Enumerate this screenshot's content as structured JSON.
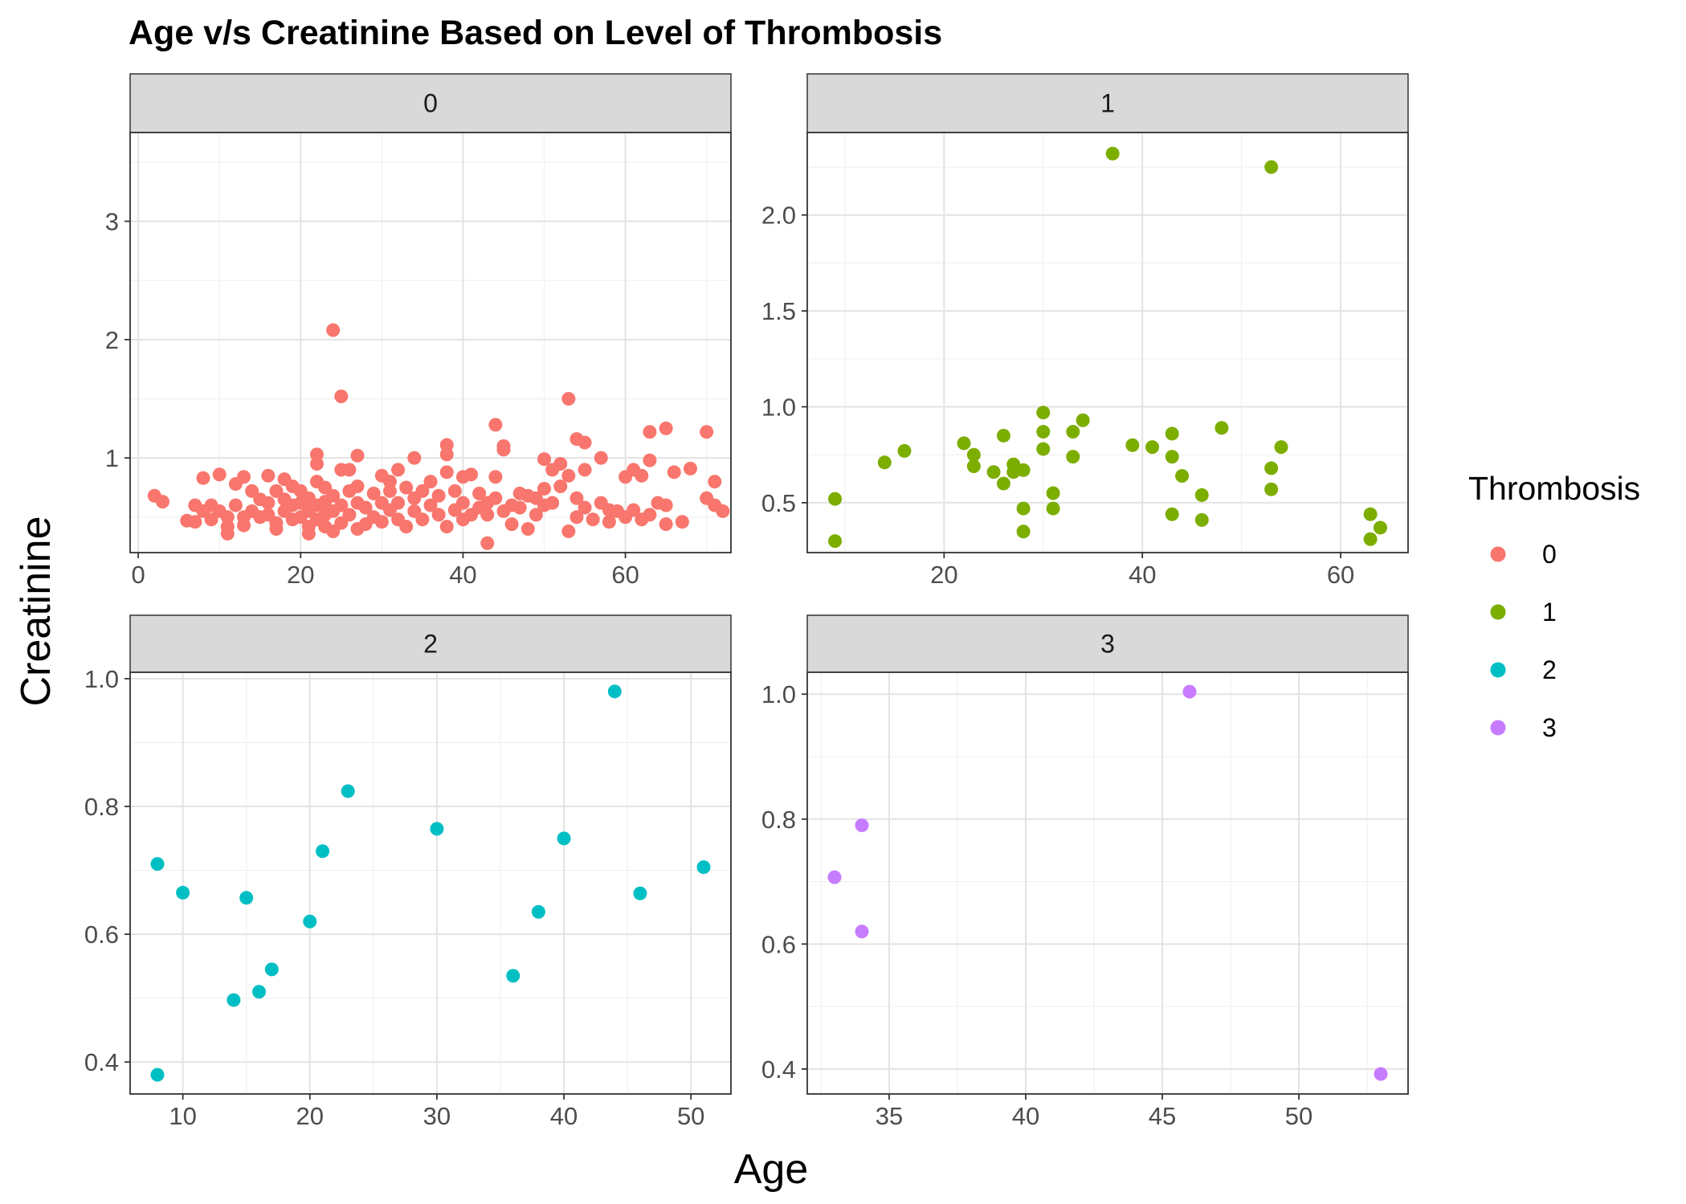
{
  "chart_data": {
    "type": "scatter",
    "title": "Age v/s Creatinine Based on Level of Thrombosis",
    "xlabel": "Age",
    "ylabel": "Creatinine",
    "legend": {
      "title": "Thrombosis",
      "placement": "right",
      "entries": [
        {
          "label": "0",
          "color": "#F8766D"
        },
        {
          "label": "1",
          "color": "#7CAE00"
        },
        {
          "label": "2",
          "color": "#00BFC4"
        },
        {
          "label": "3",
          "color": "#C77CFF"
        }
      ]
    },
    "grid": true,
    "facets": [
      {
        "label": "0",
        "color": "#F8766D",
        "xlim": [
          -1,
          73
        ],
        "ylim": [
          0.2,
          3.75
        ],
        "xticks": [
          0,
          20,
          40,
          60
        ],
        "yticks": [
          1,
          2,
          3
        ],
        "points": [
          [
            2,
            0.68
          ],
          [
            3,
            0.63
          ],
          [
            6,
            0.47
          ],
          [
            7,
            0.46
          ],
          [
            7,
            0.6
          ],
          [
            8,
            0.83
          ],
          [
            8,
            0.55
          ],
          [
            9,
            0.48
          ],
          [
            9,
            0.6
          ],
          [
            10,
            0.86
          ],
          [
            10,
            0.55
          ],
          [
            11,
            0.42
          ],
          [
            11,
            0.36
          ],
          [
            11,
            0.5
          ],
          [
            12,
            0.78
          ],
          [
            12,
            0.6
          ],
          [
            13,
            0.84
          ],
          [
            13,
            0.43
          ],
          [
            13,
            0.5
          ],
          [
            14,
            0.72
          ],
          [
            14,
            0.55
          ],
          [
            15,
            0.65
          ],
          [
            15,
            0.5
          ],
          [
            16,
            0.85
          ],
          [
            16,
            0.52
          ],
          [
            16,
            0.62
          ],
          [
            17,
            0.45
          ],
          [
            17,
            0.72
          ],
          [
            17,
            0.4
          ],
          [
            18,
            0.82
          ],
          [
            18,
            0.55
          ],
          [
            18,
            0.65
          ],
          [
            19,
            0.76
          ],
          [
            19,
            0.48
          ],
          [
            19,
            0.6
          ],
          [
            20,
            0.72
          ],
          [
            20,
            0.5
          ],
          [
            20,
            0.62
          ],
          [
            21,
            0.42
          ],
          [
            21,
            0.55
          ],
          [
            21,
            0.66
          ],
          [
            21,
            0.36
          ],
          [
            22,
            1.03
          ],
          [
            22,
            0.95
          ],
          [
            22,
            0.8
          ],
          [
            22,
            0.6
          ],
          [
            22,
            0.48
          ],
          [
            23,
            0.75
          ],
          [
            23,
            0.52
          ],
          [
            23,
            0.42
          ],
          [
            23,
            0.63
          ],
          [
            24,
            2.08
          ],
          [
            24,
            0.55
          ],
          [
            24,
            0.38
          ],
          [
            24,
            0.68
          ],
          [
            25,
            1.52
          ],
          [
            25,
            0.9
          ],
          [
            25,
            0.6
          ],
          [
            25,
            0.45
          ],
          [
            26,
            0.72
          ],
          [
            26,
            0.52
          ],
          [
            26,
            0.9
          ],
          [
            27,
            1.02
          ],
          [
            27,
            0.4
          ],
          [
            27,
            0.62
          ],
          [
            27,
            0.76
          ],
          [
            28,
            0.58
          ],
          [
            28,
            0.44
          ],
          [
            29,
            0.7
          ],
          [
            29,
            0.5
          ],
          [
            30,
            0.85
          ],
          [
            30,
            0.62
          ],
          [
            30,
            0.46
          ],
          [
            31,
            0.8
          ],
          [
            31,
            0.56
          ],
          [
            31,
            0.72
          ],
          [
            32,
            0.9
          ],
          [
            32,
            0.48
          ],
          [
            32,
            0.62
          ],
          [
            33,
            0.75
          ],
          [
            33,
            0.42
          ],
          [
            34,
            1.0
          ],
          [
            34,
            0.66
          ],
          [
            34,
            0.55
          ],
          [
            35,
            0.72
          ],
          [
            35,
            0.48
          ],
          [
            36,
            0.8
          ],
          [
            36,
            0.6
          ],
          [
            37,
            0.52
          ],
          [
            37,
            0.68
          ],
          [
            38,
            1.11
          ],
          [
            38,
            1.03
          ],
          [
            38,
            0.88
          ],
          [
            38,
            0.42
          ],
          [
            39,
            0.72
          ],
          [
            39,
            0.56
          ],
          [
            40,
            0.84
          ],
          [
            40,
            0.62
          ],
          [
            40,
            0.48
          ],
          [
            41,
            0.86
          ],
          [
            41,
            0.52
          ],
          [
            42,
            0.7
          ],
          [
            42,
            0.58
          ],
          [
            43,
            0.28
          ],
          [
            43,
            0.62
          ],
          [
            43,
            0.52
          ],
          [
            44,
            1.28
          ],
          [
            44,
            0.84
          ],
          [
            44,
            0.66
          ],
          [
            45,
            1.1
          ],
          [
            45,
            1.07
          ],
          [
            45,
            0.55
          ],
          [
            46,
            0.6
          ],
          [
            46,
            0.44
          ],
          [
            47,
            0.7
          ],
          [
            47,
            0.58
          ],
          [
            48,
            0.68
          ],
          [
            48,
            0.4
          ],
          [
            49,
            0.66
          ],
          [
            49,
            0.52
          ],
          [
            50,
            0.99
          ],
          [
            50,
            0.74
          ],
          [
            50,
            0.6
          ],
          [
            51,
            0.9
          ],
          [
            51,
            0.62
          ],
          [
            52,
            0.95
          ],
          [
            52,
            0.76
          ],
          [
            53,
            1.5
          ],
          [
            53,
            0.85
          ],
          [
            53,
            0.38
          ],
          [
            54,
            1.16
          ],
          [
            54,
            0.66
          ],
          [
            54,
            0.5
          ],
          [
            55,
            1.13
          ],
          [
            55,
            0.9
          ],
          [
            55,
            0.58
          ],
          [
            56,
            0.48
          ],
          [
            57,
            1.0
          ],
          [
            57,
            0.62
          ],
          [
            58,
            0.56
          ],
          [
            58,
            0.46
          ],
          [
            59,
            0.55
          ],
          [
            60,
            0.84
          ],
          [
            60,
            0.5
          ],
          [
            61,
            0.9
          ],
          [
            61,
            0.56
          ],
          [
            62,
            0.85
          ],
          [
            62,
            0.48
          ],
          [
            63,
            1.22
          ],
          [
            63,
            0.98
          ],
          [
            63,
            0.52
          ],
          [
            64,
            0.62
          ],
          [
            65,
            1.25
          ],
          [
            65,
            0.6
          ],
          [
            65,
            0.44
          ],
          [
            66,
            0.88
          ],
          [
            67,
            0.46
          ],
          [
            68,
            0.91
          ],
          [
            70,
            1.22
          ],
          [
            70,
            0.66
          ],
          [
            71,
            0.8
          ],
          [
            71,
            0.6
          ],
          [
            72,
            0.55
          ]
        ]
      },
      {
        "label": "1",
        "color": "#7CAE00",
        "xlim": [
          6.2,
          66.8
        ],
        "ylim": [
          0.24,
          2.43
        ],
        "xticks": [
          20,
          40,
          60
        ],
        "yticks": [
          0.5,
          1.0,
          1.5,
          2.0
        ],
        "points": [
          [
            9,
            0.52
          ],
          [
            9,
            0.3
          ],
          [
            14,
            0.71
          ],
          [
            16,
            0.77
          ],
          [
            22,
            0.81
          ],
          [
            23,
            0.75
          ],
          [
            23,
            0.69
          ],
          [
            25,
            0.66
          ],
          [
            26,
            0.85
          ],
          [
            26,
            0.6
          ],
          [
            27,
            0.7
          ],
          [
            27,
            0.66
          ],
          [
            28,
            0.67
          ],
          [
            28,
            0.47
          ],
          [
            28,
            0.35
          ],
          [
            30,
            0.97
          ],
          [
            30,
            0.87
          ],
          [
            30,
            0.78
          ],
          [
            31,
            0.55
          ],
          [
            31,
            0.47
          ],
          [
            33,
            0.87
          ],
          [
            33,
            0.74
          ],
          [
            34,
            0.93
          ],
          [
            37,
            2.32
          ],
          [
            39,
            0.8
          ],
          [
            41,
            0.79
          ],
          [
            43,
            0.86
          ],
          [
            43,
            0.74
          ],
          [
            43,
            0.44
          ],
          [
            44,
            0.64
          ],
          [
            46,
            0.54
          ],
          [
            46,
            0.41
          ],
          [
            48,
            0.89
          ],
          [
            53,
            2.25
          ],
          [
            53,
            0.68
          ],
          [
            53,
            0.57
          ],
          [
            54,
            0.79
          ],
          [
            63,
            0.44
          ],
          [
            63,
            0.31
          ],
          [
            64,
            0.37
          ]
        ]
      },
      {
        "label": "2",
        "color": "#00BFC4",
        "xlim": [
          5.85,
          53.15
        ],
        "ylim": [
          0.35,
          1.01
        ],
        "xticks": [
          10,
          20,
          30,
          40,
          50
        ],
        "yticks": [
          0.4,
          0.6,
          0.8,
          1.0
        ],
        "points": [
          [
            8,
            0.71
          ],
          [
            8,
            0.38
          ],
          [
            10,
            0.665
          ],
          [
            14,
            0.497
          ],
          [
            15,
            0.657
          ],
          [
            16,
            0.51
          ],
          [
            17,
            0.545
          ],
          [
            20,
            0.62
          ],
          [
            21,
            0.73
          ],
          [
            23,
            0.824
          ],
          [
            30,
            0.765
          ],
          [
            36,
            0.535
          ],
          [
            38,
            0.635
          ],
          [
            40,
            0.75
          ],
          [
            44,
            0.98
          ],
          [
            46,
            0.664
          ],
          [
            51,
            0.705
          ]
        ]
      },
      {
        "label": "3",
        "color": "#C77CFF",
        "xlim": [
          32.0,
          54.0
        ],
        "ylim": [
          0.36,
          1.035
        ],
        "xticks": [
          35,
          40,
          45,
          50
        ],
        "yticks": [
          0.4,
          0.6,
          0.8,
          1.0
        ],
        "points": [
          [
            33,
            0.707
          ],
          [
            34,
            0.79
          ],
          [
            34,
            0.62
          ],
          [
            46,
            1.004
          ],
          [
            53,
            0.392
          ]
        ]
      }
    ]
  }
}
